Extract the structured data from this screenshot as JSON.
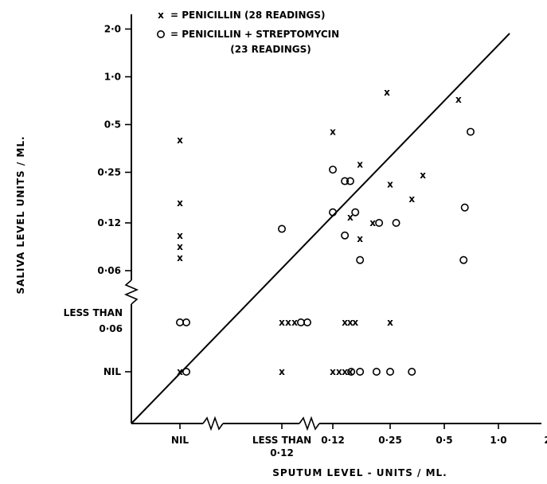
{
  "chart_data": {
    "type": "scatter",
    "title": "",
    "xlabel": "SPUTUM LEVEL - UNITS / ML.",
    "ylabel": "SALIVA LEVEL  UNITS / ML.",
    "x_ticks": [
      "NIL",
      "LESS THAN 0·12",
      "0·12",
      "0·25",
      "0·5",
      "1·0",
      "2·0"
    ],
    "y_ticks": [
      "NIL",
      "LESS THAN 0·06",
      "0·06",
      "0·12",
      "0·25",
      "0·5",
      "1·0",
      "2·0"
    ],
    "scale": "log2 with NIL and LESS THAN categories below the broken axes",
    "reference_line": "line of equality (saliva level = sputum level)",
    "legend": {
      "placement": "top-left",
      "entries": [
        {
          "symbol": "x",
          "label": "= PENICILLIN (28 READINGS)"
        },
        {
          "symbol": "o",
          "label": "= PENICILLIN + STREPTOMYCIN",
          "label2": "(23 READINGS)"
        }
      ]
    },
    "series": [
      {
        "name": "PENICILLIN (28 READINGS)",
        "marker": "x",
        "points": [
          [
            "NIL",
            0.4
          ],
          [
            "NIL",
            0.16
          ],
          [
            "NIL",
            0.1
          ],
          [
            "NIL",
            0.085
          ],
          [
            "NIL",
            0.072
          ],
          [
            "NIL",
            "NIL"
          ],
          [
            "LESS THAN 0·12",
            "LESS THAN 0·06"
          ],
          [
            "LESS THAN 0·12",
            "LESS THAN 0·06"
          ],
          [
            "LESS THAN 0·12",
            "LESS THAN 0·06"
          ],
          [
            "LESS THAN 0·12",
            "NIL"
          ],
          [
            0.12,
            0.45
          ],
          [
            0.17,
            0.28
          ],
          [
            0.24,
            0.8
          ],
          [
            0.38,
            0.24
          ],
          [
            0.25,
            0.21
          ],
          [
            0.6,
            0.72
          ],
          [
            0.33,
            0.17
          ],
          [
            0.15,
            0.13
          ],
          [
            0.2,
            0.12
          ],
          [
            0.17,
            0.095
          ],
          [
            0.14,
            "LESS THAN 0·06"
          ],
          [
            0.15,
            "LESS THAN 0·06"
          ],
          [
            0.16,
            "LESS THAN 0·06"
          ],
          [
            0.25,
            "LESS THAN 0·06"
          ],
          [
            0.12,
            "NIL"
          ],
          [
            0.13,
            "NIL"
          ],
          [
            0.14,
            "NIL"
          ],
          [
            0.15,
            "NIL"
          ]
        ]
      },
      {
        "name": "PENICILLIN + STREPTOMYCIN (23 READINGS)",
        "marker": "o",
        "points": [
          [
            "NIL",
            "LESS THAN 0·06"
          ],
          [
            "NIL",
            "LESS THAN 0·06"
          ],
          [
            "NIL",
            "NIL"
          ],
          [
            "LESS THAN 0·12",
            0.11
          ],
          [
            "LESS THAN 0·12",
            "LESS THAN 0·06"
          ],
          [
            "LESS THAN 0·12",
            "LESS THAN 0·06"
          ],
          [
            0.12,
            0.26
          ],
          [
            0.14,
            0.22
          ],
          [
            0.15,
            0.22
          ],
          [
            0.12,
            0.14
          ],
          [
            0.16,
            0.14
          ],
          [
            0.14,
            0.1
          ],
          [
            0.2,
            0.12
          ],
          [
            0.27,
            0.12
          ],
          [
            0.17,
            0.07
          ],
          [
            0.7,
            0.45
          ],
          [
            0.65,
            0.15
          ],
          [
            0.64,
            0.07
          ],
          [
            0.17,
            "NIL"
          ],
          [
            0.21,
            "NIL"
          ],
          [
            0.25,
            "NIL"
          ],
          [
            0.33,
            "NIL"
          ],
          [
            0.14,
            "NIL"
          ]
        ]
      }
    ]
  }
}
